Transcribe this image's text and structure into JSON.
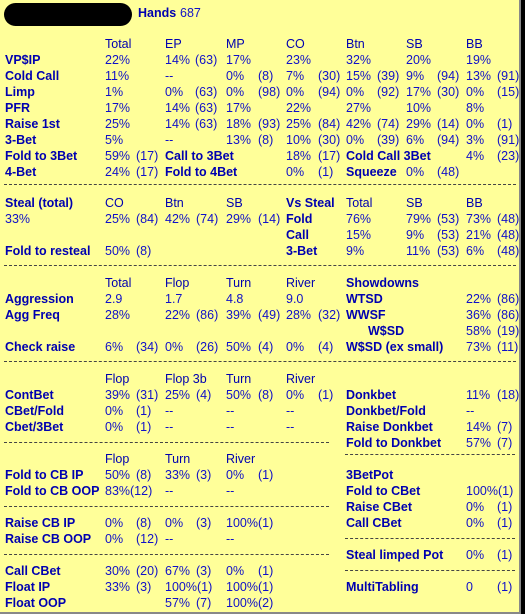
{
  "header": {
    "hands_label": "Hands",
    "hands_value": "687"
  },
  "s1": {
    "cols": [
      "Total",
      "EP",
      "MP",
      "CO",
      "Btn",
      "SB",
      "BB"
    ],
    "vpip": {
      "label": "VP$IP",
      "v": [
        "22%",
        "14%",
        "(63)",
        "17%",
        "23%",
        "32%",
        "20%",
        "19%"
      ]
    },
    "cold": {
      "label": "Cold Call",
      "v": [
        "11%",
        "--",
        "0%",
        "(8)",
        "7%",
        "(30)",
        "15%",
        "(39)",
        "9%",
        "(94)",
        "13%",
        "(91)"
      ]
    },
    "limp": {
      "label": "Limp",
      "v": [
        "1%",
        "0%",
        "(63)",
        "0%",
        "(98)",
        "0%",
        "(94)",
        "0%",
        "(92)",
        "17%",
        "(30)",
        "0%",
        "(15)"
      ]
    },
    "pfr": {
      "label": "PFR",
      "v": [
        "17%",
        "14%",
        "(63)",
        "17%",
        "22%",
        "27%",
        "10%",
        "8%"
      ]
    },
    "r1": {
      "label": "Raise 1st",
      "v": [
        "25%",
        "14%",
        "(63)",
        "18%",
        "(93)",
        "25%",
        "(84)",
        "42%",
        "(74)",
        "29%",
        "(14)",
        "0%",
        "(1)"
      ]
    },
    "b3": {
      "label": "3-Bet",
      "v": [
        "5%",
        "--",
        "13%",
        "(8)",
        "10%",
        "(30)",
        "0%",
        "(39)",
        "6%",
        "(94)",
        "3%",
        "(91)"
      ]
    },
    "f3": {
      "label": "Fold to 3Bet",
      "v": [
        "59%",
        "(17)",
        "Call to 3Bet",
        "18%",
        "(17)",
        "Cold Call 3Bet",
        "4%",
        "(23)"
      ]
    },
    "b4": {
      "label": "4-Bet",
      "v": [
        "24%",
        "(17)",
        "Fold to 4Bet",
        "0%",
        "(1)",
        "Squeeze",
        "0%",
        "(48)"
      ]
    }
  },
  "s2": {
    "cols": [
      "Steal (total)",
      "CO",
      "Btn",
      "SB",
      "Vs Steal",
      "Total",
      "SB",
      "BB"
    ],
    "steal": {
      "v": [
        "33%",
        "25%",
        "(84)",
        "42%",
        "(74)",
        "29%",
        "(14)",
        "Fold",
        "76%",
        "79%",
        "(53)",
        "73%",
        "(48)"
      ]
    },
    "call": {
      "v": [
        "Call",
        "15%",
        "9%",
        "(53)",
        "21%",
        "(48)"
      ]
    },
    "fold": {
      "label": "Fold to resteal",
      "v": [
        "50%",
        "(8)",
        "3-Bet",
        "9%",
        "11%",
        "(53)",
        "6%",
        "(48)"
      ]
    }
  },
  "s3": {
    "cols": [
      "Total",
      "Flop",
      "Turn",
      "River",
      "Showdowns"
    ],
    "agg": {
      "label": "Aggression",
      "v": [
        "2.9",
        "1.7",
        "4.8",
        "9.0",
        "WTSD",
        "22%",
        "(86)"
      ]
    },
    "aggf": {
      "label": "Agg Freq",
      "v": [
        "28%",
        "22%",
        "(86)",
        "39%",
        "(49)",
        "28%",
        "(32)",
        "WWSF",
        "36%",
        "(86)"
      ]
    },
    "wsd": {
      "v": [
        "W$SD",
        "58%",
        "(19)"
      ]
    },
    "cr": {
      "label": "Check raise",
      "v": [
        "6%",
        "(34)",
        "0%",
        "(26)",
        "50%",
        "(4)",
        "0%",
        "(4)",
        "W$SD (ex small)",
        "73%",
        "(11)"
      ]
    }
  },
  "s4": {
    "cols": [
      "Flop",
      "Flop 3b",
      "Turn",
      "River"
    ],
    "cb": {
      "label": "ContBet",
      "v": [
        "39%",
        "(31)",
        "25%",
        "(4)",
        "50%",
        "(8)",
        "0%",
        "(1)",
        "Donkbet",
        "11%",
        "(18)"
      ]
    },
    "cbf": {
      "label": "CBet/Fold",
      "v": [
        "0%",
        "(1)",
        "--",
        "--",
        "--",
        "Donkbet/Fold",
        "--"
      ]
    },
    "cb3": {
      "label": "Cbet/3Bet",
      "v": [
        "0%",
        "(1)",
        "--",
        "--",
        "--",
        "Raise Donkbet",
        "14%",
        "(7)"
      ]
    },
    "fdk": {
      "v": [
        "Fold to Donkbet",
        "57%",
        "(7)"
      ]
    }
  },
  "s5": {
    "cols": [
      "Flop",
      "Turn",
      "River"
    ],
    "fip": {
      "label": "Fold to CB IP",
      "v": [
        "50%",
        "(8)",
        "33%",
        "(3)",
        "0%",
        "(1)",
        "3BetPot"
      ]
    },
    "foop": {
      "label": "Fold to CB OOP",
      "v": [
        "83%",
        "(12)",
        "--",
        "--",
        "Fold to CBet",
        "100%(1)"
      ]
    },
    "rcb": {
      "v": [
        "Raise CBet",
        "0%",
        "(1)"
      ]
    },
    "rip": {
      "label": "Raise CB IP",
      "v": [
        "0%",
        "(8)",
        "0%",
        "(3)",
        "100%(1)",
        "Call CBet",
        "0%",
        "(1)"
      ]
    },
    "roop": {
      "label": "Raise CB OOP",
      "v": [
        "0%",
        "(12)",
        "--",
        "--"
      ]
    },
    "slp": {
      "v": [
        "Steal limped Pot",
        "0%",
        "(1)"
      ]
    },
    "ccb": {
      "label": "Call CBet",
      "v": [
        "30%",
        "(20)",
        "67%",
        "(3)",
        "0%",
        "(1)"
      ]
    },
    "fl": {
      "label": "Float IP",
      "v": [
        "33%",
        "(3)",
        "100%(1)",
        "100%(1)",
        "MultiTabling",
        "0",
        "(1)"
      ]
    },
    "flo": {
      "label": "Float OOP",
      "v": [
        "57%",
        "(7)",
        "100%(2)"
      ]
    }
  }
}
